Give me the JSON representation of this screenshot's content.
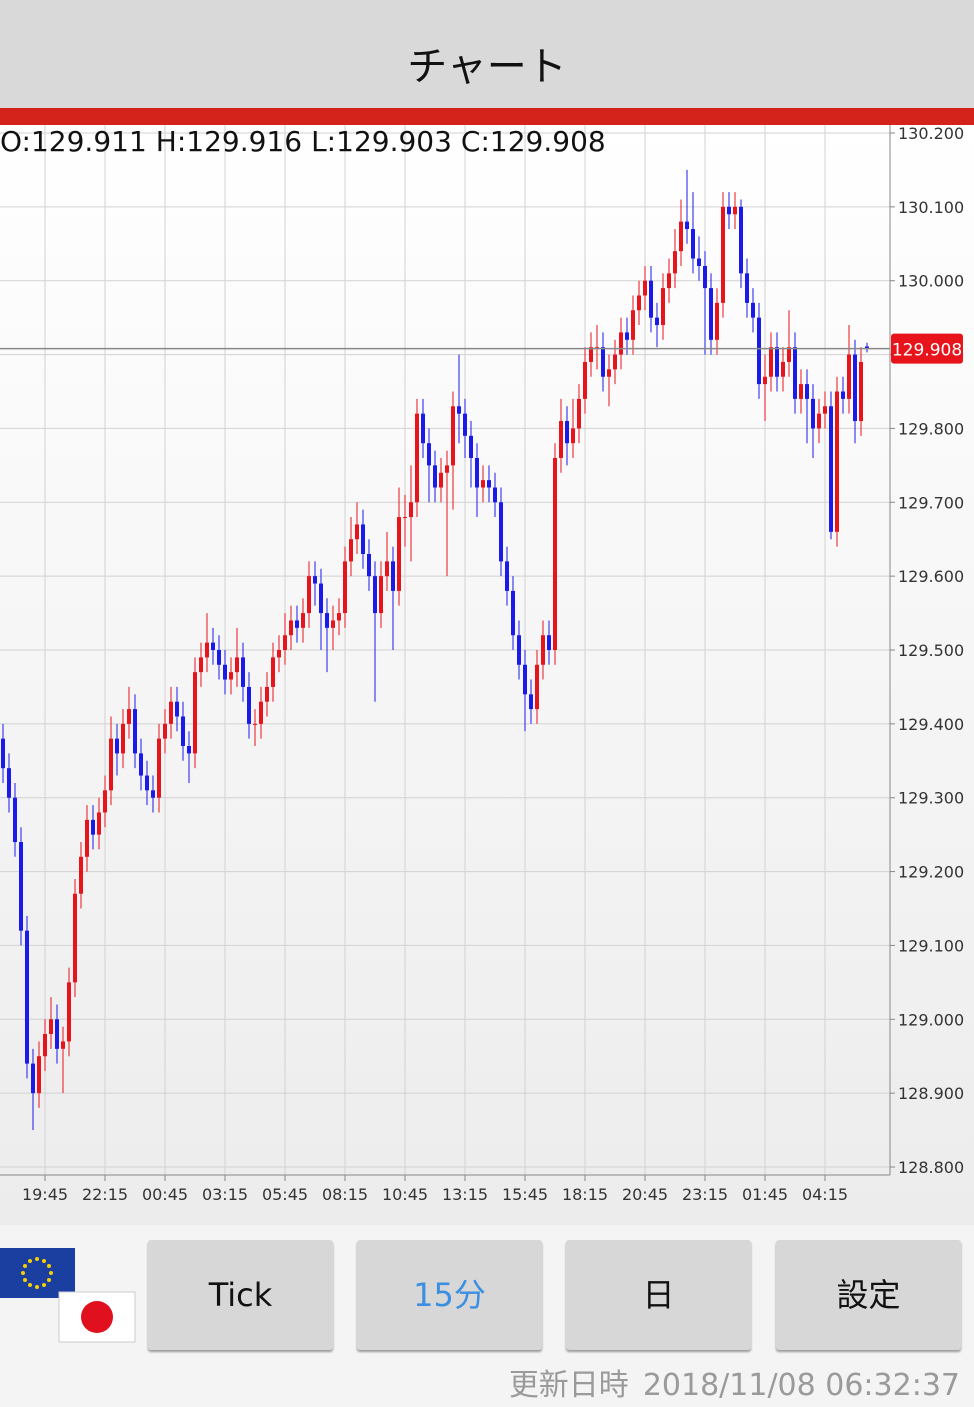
{
  "header": {
    "title": "チャート"
  },
  "buttons": [
    "Tick",
    "15分",
    "日",
    "設定"
  ],
  "footer": {
    "label": "更新日時",
    "timestamp": "2018/11/08 06:32:37"
  },
  "chart_data": {
    "type": "candlestick",
    "ohlc_labels": [
      "O:",
      "H:",
      "L:",
      "C:"
    ],
    "up_color": "#e8141b",
    "down_color": "#1a1aeb",
    "grid": true,
    "ylim": [
      128.8,
      130.2
    ],
    "yticks": [
      {
        "value": 128.8,
        "label": "128.800"
      },
      {
        "value": 128.9,
        "label": "128.900"
      },
      {
        "value": 129.0,
        "label": "129.000"
      },
      {
        "value": 129.1,
        "label": "129.100"
      },
      {
        "value": 129.2,
        "label": "129.200"
      },
      {
        "value": 129.3,
        "label": "129.300"
      },
      {
        "value": 129.4,
        "label": "129.400"
      },
      {
        "value": 129.5,
        "label": "129.500"
      },
      {
        "value": 129.6,
        "label": "129.600"
      },
      {
        "value": 129.7,
        "label": "129.700"
      },
      {
        "value": 129.8,
        "label": "129.800"
      },
      {
        "value": 129.9,
        "label": "129.900"
      },
      {
        "value": 130.0,
        "label": "130.000"
      },
      {
        "value": 130.1,
        "label": "130.100"
      },
      {
        "value": 130.2,
        "label": "130.200"
      }
    ],
    "categories": [
      null,
      null,
      null,
      null,
      null,
      null,
      null,
      "19:45",
      null,
      null,
      null,
      null,
      null,
      null,
      null,
      null,
      null,
      "22:15",
      null,
      null,
      null,
      null,
      null,
      null,
      null,
      null,
      null,
      "00:45",
      null,
      null,
      null,
      null,
      null,
      null,
      null,
      null,
      null,
      "03:15",
      null,
      null,
      null,
      null,
      null,
      null,
      null,
      null,
      null,
      "05:45",
      null,
      null,
      null,
      null,
      null,
      null,
      null,
      null,
      null,
      "08:15",
      null,
      null,
      null,
      null,
      null,
      null,
      null,
      null,
      null,
      "10:45",
      null,
      null,
      null,
      null,
      null,
      null,
      null,
      null,
      null,
      "13:15",
      null,
      null,
      null,
      null,
      null,
      null,
      null,
      null,
      null,
      "15:45",
      null,
      null,
      null,
      null,
      null,
      null,
      null,
      null,
      null,
      "18:15",
      null,
      null,
      null,
      null,
      null,
      null,
      null,
      null,
      null,
      "20:45",
      null,
      null,
      null,
      null,
      null,
      null,
      null,
      null,
      null,
      "23:15",
      null,
      null,
      null,
      null,
      null,
      null,
      null,
      null,
      null,
      "01:45",
      null,
      null,
      null,
      null,
      null,
      null,
      null,
      null,
      null,
      "04:15",
      null,
      null,
      null,
      null,
      null,
      null,
      null
    ],
    "open": [
      129.38,
      129.34,
      129.3,
      129.24,
      129.12,
      128.94,
      128.9,
      128.95,
      128.98,
      129.0,
      128.96,
      128.97,
      129.05,
      129.17,
      129.22,
      129.27,
      129.25,
      129.28,
      129.31,
      129.38,
      129.36,
      129.4,
      129.42,
      129.36,
      129.33,
      129.31,
      129.3,
      129.38,
      129.4,
      129.43,
      129.41,
      129.37,
      129.36,
      129.47,
      129.49,
      129.51,
      129.5,
      129.48,
      129.46,
      129.47,
      129.49,
      129.45,
      129.4,
      129.4,
      129.43,
      129.45,
      129.49,
      129.5,
      129.52,
      129.54,
      129.53,
      129.55,
      129.6,
      129.59,
      129.55,
      129.53,
      129.54,
      129.55,
      129.62,
      129.65,
      129.67,
      129.63,
      129.6,
      129.55,
      129.6,
      129.62,
      129.58,
      129.68,
      129.68,
      129.7,
      129.82,
      129.78,
      129.75,
      129.72,
      129.74,
      129.75,
      129.83,
      129.82,
      129.79,
      129.76,
      129.72,
      129.73,
      129.72,
      129.7,
      129.62,
      129.58,
      129.52,
      129.48,
      129.44,
      129.42,
      129.48,
      129.52,
      129.5,
      129.76,
      129.81,
      129.78,
      129.8,
      129.84,
      129.89,
      129.91,
      129.91,
      129.87,
      129.88,
      129.9,
      129.93,
      129.92,
      129.96,
      129.98,
      130.0,
      129.95,
      129.94,
      129.99,
      130.01,
      130.04,
      130.08,
      130.07,
      130.03,
      130.02,
      129.99,
      129.92,
      129.97,
      130.1,
      130.09,
      130.1,
      130.01,
      129.97,
      129.95,
      129.86,
      129.87,
      129.91,
      129.87,
      129.89,
      129.91,
      129.84,
      129.86,
      129.84,
      129.8,
      129.82,
      129.83,
      129.66,
      129.85,
      129.84,
      129.9,
      129.81,
      129.911
    ],
    "high": [
      129.4,
      129.36,
      129.32,
      129.26,
      129.14,
      128.96,
      128.97,
      129.0,
      129.03,
      129.02,
      128.99,
      129.07,
      129.19,
      129.24,
      129.29,
      129.29,
      129.3,
      129.33,
      129.41,
      129.4,
      129.42,
      129.45,
      129.44,
      129.38,
      129.35,
      129.33,
      129.4,
      129.42,
      129.45,
      129.45,
      129.43,
      129.39,
      129.49,
      129.51,
      129.55,
      129.53,
      129.52,
      129.5,
      129.49,
      129.53,
      129.51,
      129.47,
      129.42,
      129.45,
      129.47,
      129.51,
      129.52,
      129.55,
      129.56,
      129.56,
      129.57,
      129.62,
      129.62,
      129.61,
      129.57,
      129.56,
      129.57,
      129.64,
      129.68,
      129.7,
      129.69,
      129.65,
      129.62,
      129.62,
      129.66,
      129.64,
      129.72,
      129.71,
      129.75,
      129.84,
      129.84,
      129.8,
      129.77,
      129.76,
      129.77,
      129.85,
      129.9,
      129.84,
      129.81,
      129.78,
      129.75,
      129.75,
      129.74,
      129.72,
      129.64,
      129.6,
      129.54,
      129.5,
      129.46,
      129.5,
      129.54,
      129.54,
      129.78,
      129.84,
      129.83,
      129.84,
      129.86,
      129.91,
      129.93,
      129.94,
      129.93,
      129.9,
      129.92,
      129.95,
      129.95,
      129.98,
      130.0,
      130.02,
      130.02,
      129.97,
      130.01,
      130.03,
      130.07,
      130.11,
      130.15,
      130.12,
      130.06,
      130.04,
      130.01,
      129.99,
      130.12,
      130.12,
      130.12,
      130.11,
      130.03,
      129.99,
      129.97,
      129.9,
      129.93,
      129.93,
      129.91,
      129.96,
      129.93,
      129.88,
      129.88,
      129.86,
      129.84,
      129.85,
      129.85,
      129.87,
      129.87,
      129.94,
      129.92,
      129.91,
      129.916
    ],
    "low": [
      129.32,
      129.28,
      129.22,
      129.1,
      128.92,
      128.85,
      128.88,
      128.93,
      128.96,
      128.94,
      128.9,
      128.95,
      129.03,
      129.15,
      129.2,
      129.23,
      129.23,
      129.26,
      129.29,
      129.33,
      129.34,
      129.38,
      129.34,
      129.31,
      129.29,
      129.28,
      129.28,
      129.36,
      129.38,
      129.39,
      129.35,
      129.32,
      129.34,
      129.45,
      129.47,
      129.48,
      129.46,
      129.44,
      129.44,
      129.45,
      129.43,
      129.38,
      129.37,
      129.38,
      129.41,
      129.43,
      129.47,
      129.48,
      129.5,
      129.51,
      129.51,
      129.53,
      129.56,
      129.5,
      129.47,
      129.5,
      129.52,
      129.53,
      129.6,
      129.63,
      129.61,
      129.58,
      129.43,
      129.53,
      129.58,
      129.5,
      129.56,
      129.64,
      129.62,
      129.68,
      129.76,
      129.7,
      129.7,
      129.7,
      129.6,
      129.69,
      129.78,
      129.76,
      129.72,
      129.68,
      129.7,
      129.7,
      129.68,
      129.6,
      129.56,
      129.5,
      129.46,
      129.39,
      129.4,
      129.4,
      129.46,
      129.48,
      129.48,
      129.74,
      129.75,
      129.76,
      129.78,
      129.82,
      129.87,
      129.88,
      129.85,
      129.83,
      129.86,
      129.88,
      129.9,
      129.9,
      129.94,
      129.96,
      129.93,
      129.91,
      129.92,
      129.97,
      129.99,
      130.02,
      130.05,
      130.01,
      130.0,
      129.9,
      129.9,
      129.9,
      129.95,
      130.07,
      130.07,
      129.99,
      129.95,
      129.93,
      129.84,
      129.81,
      129.85,
      129.85,
      129.85,
      129.87,
      129.82,
      129.82,
      129.78,
      129.76,
      129.78,
      129.8,
      129.65,
      129.64,
      129.82,
      129.82,
      129.78,
      129.79,
      129.903
    ],
    "close": [
      129.34,
      129.3,
      129.24,
      129.12,
      128.94,
      128.9,
      128.95,
      128.98,
      129.0,
      128.96,
      128.97,
      129.05,
      129.17,
      129.22,
      129.27,
      129.25,
      129.28,
      129.31,
      129.38,
      129.36,
      129.4,
      129.42,
      129.36,
      129.33,
      129.31,
      129.3,
      129.38,
      129.4,
      129.43,
      129.41,
      129.37,
      129.36,
      129.47,
      129.49,
      129.51,
      129.5,
      129.48,
      129.46,
      129.47,
      129.49,
      129.45,
      129.4,
      129.4,
      129.43,
      129.45,
      129.49,
      129.5,
      129.52,
      129.54,
      129.53,
      129.55,
      129.6,
      129.59,
      129.55,
      129.53,
      129.54,
      129.55,
      129.62,
      129.65,
      129.67,
      129.63,
      129.6,
      129.55,
      129.6,
      129.62,
      129.58,
      129.68,
      129.68,
      129.7,
      129.82,
      129.78,
      129.75,
      129.72,
      129.74,
      129.75,
      129.83,
      129.82,
      129.79,
      129.76,
      129.72,
      129.73,
      129.72,
      129.7,
      129.62,
      129.58,
      129.52,
      129.48,
      129.44,
      129.42,
      129.48,
      129.52,
      129.5,
      129.76,
      129.81,
      129.78,
      129.8,
      129.84,
      129.89,
      129.91,
      129.91,
      129.87,
      129.88,
      129.9,
      129.93,
      129.92,
      129.96,
      129.98,
      130.0,
      129.95,
      129.94,
      129.99,
      130.01,
      130.04,
      130.08,
      130.07,
      130.03,
      130.02,
      129.99,
      129.92,
      129.97,
      130.1,
      130.09,
      130.1,
      130.01,
      129.97,
      129.95,
      129.86,
      129.87,
      129.91,
      129.87,
      129.89,
      129.91,
      129.84,
      129.86,
      129.84,
      129.8,
      129.82,
      129.83,
      129.66,
      129.85,
      129.84,
      129.9,
      129.81,
      129.89,
      129.908
    ]
  }
}
